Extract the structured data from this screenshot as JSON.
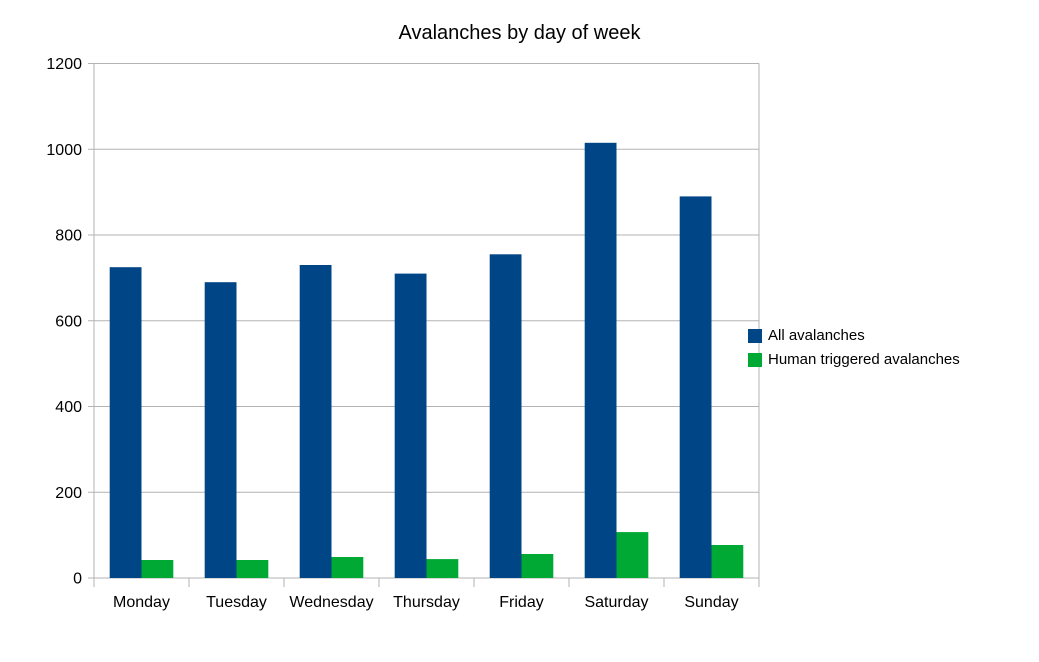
{
  "chart_data": {
    "type": "bar",
    "title": "Avalanches by day of week",
    "categories": [
      "Monday",
      "Tuesday",
      "Wednesday",
      "Thursday",
      "Friday",
      "Saturday",
      "Sunday"
    ],
    "series": [
      {
        "name": "All avalanches",
        "color": "#004586",
        "values": [
          725,
          690,
          730,
          710,
          755,
          1015,
          890
        ]
      },
      {
        "name": "Human triggered avalanches",
        "color": "#00A933",
        "values": [
          42,
          42,
          49,
          44,
          56,
          107,
          77
        ]
      }
    ],
    "xlabel": "",
    "ylabel": "",
    "ylim": [
      0,
      1200
    ],
    "ytick_step": 200,
    "ytick_labels": [
      "0",
      "200",
      "400",
      "600",
      "800",
      "1000",
      "1200"
    ],
    "grid": "horizontal",
    "legend_position": "right",
    "axis_color": "#b3b3b3",
    "text_color": "#000000",
    "background": "#ffffff"
  }
}
